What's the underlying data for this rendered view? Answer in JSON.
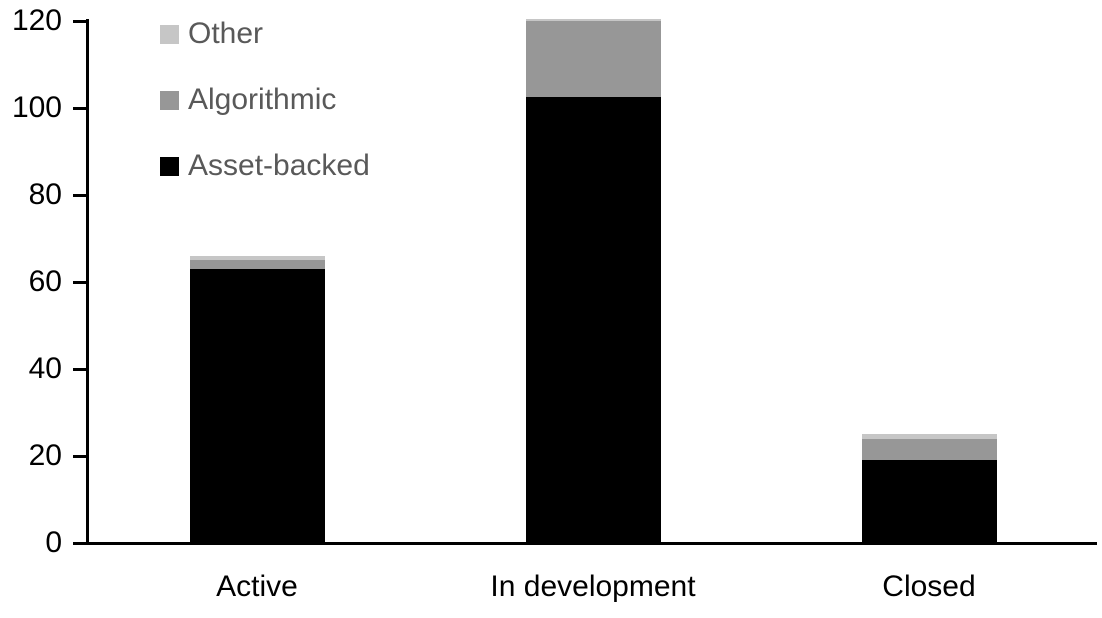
{
  "chart_data": {
    "type": "bar",
    "stacked": true,
    "title": "",
    "xlabel": "",
    "ylabel": "",
    "grid": false,
    "background_color": "#ffffff",
    "axis_color": "#000000",
    "categories": [
      "Active",
      "In development",
      "Closed"
    ],
    "series": [
      {
        "name": "Asset-backed",
        "color": "#000000",
        "values": [
          63,
          102.5,
          19
        ]
      },
      {
        "name": "Algorithmic",
        "color": "#979797",
        "values": [
          2,
          17.5,
          5
        ]
      },
      {
        "name": "Other",
        "color": "#c6c6c6",
        "values": [
          1,
          0.5,
          1
        ]
      }
    ],
    "stack_totals": [
      66,
      120.5,
      25
    ],
    "ylim": [
      0,
      120
    ],
    "yticks": [
      0,
      20,
      40,
      60,
      80,
      100,
      120
    ],
    "legend": {
      "position": "top-left",
      "order": [
        "Other",
        "Algorithmic",
        "Asset-backed"
      ],
      "text_color": "#595959"
    }
  }
}
